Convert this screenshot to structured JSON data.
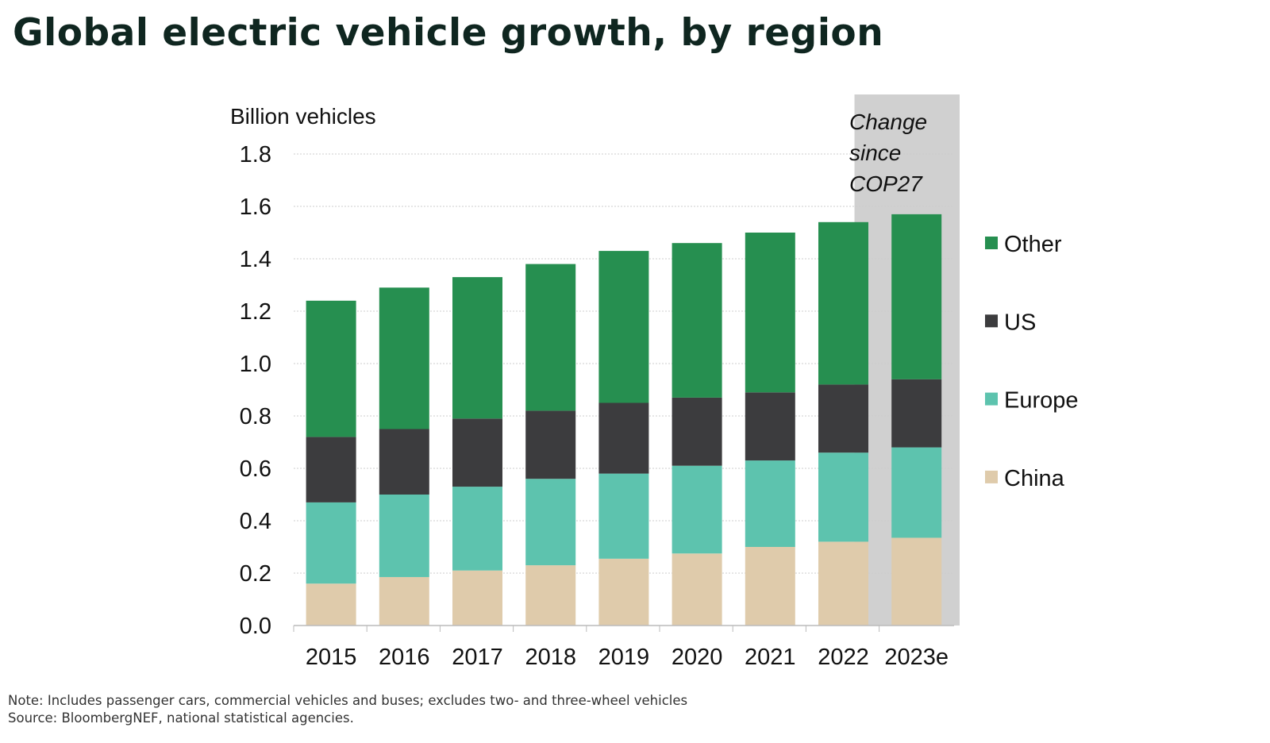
{
  "title": "Global electric vehicle growth, by region",
  "notes": {
    "note": "Note: Includes passenger cars, commercial vehicles and buses; excludes two- and three-wheel vehicles",
    "source": "Source: BloombergNEF, national statistical agencies."
  },
  "chart_data": {
    "type": "bar",
    "stacked": true,
    "ylabel": "Billion vehicles",
    "ylim": [
      0,
      1.8
    ],
    "yticks": [
      "0.0",
      "0.2",
      "0.4",
      "0.6",
      "0.8",
      "1.0",
      "1.2",
      "1.4",
      "1.6",
      "1.8"
    ],
    "grid": true,
    "legend": "right",
    "categories": [
      "2015",
      "2016",
      "2017",
      "2018",
      "2019",
      "2020",
      "2021",
      "2022",
      "2023e"
    ],
    "series": [
      {
        "name": "China",
        "color": "#dfcbab",
        "values": [
          0.16,
          0.185,
          0.21,
          0.23,
          0.255,
          0.275,
          0.3,
          0.32,
          0.335
        ]
      },
      {
        "name": "Europe",
        "color": "#5dc3ae",
        "values": [
          0.31,
          0.315,
          0.32,
          0.33,
          0.325,
          0.335,
          0.33,
          0.34,
          0.345
        ]
      },
      {
        "name": "US",
        "color": "#3c3c3e",
        "values": [
          0.25,
          0.25,
          0.26,
          0.26,
          0.27,
          0.26,
          0.26,
          0.26,
          0.26
        ]
      },
      {
        "name": "Other",
        "color": "#268f50",
        "values": [
          0.52,
          0.54,
          0.54,
          0.56,
          0.58,
          0.59,
          0.61,
          0.62,
          0.63
        ]
      }
    ],
    "annotation": {
      "lines": [
        "Change",
        "since",
        "COP27"
      ],
      "shaded_categories": [
        "2022",
        "2023e"
      ],
      "shade_color": "#d0d0d0"
    }
  }
}
